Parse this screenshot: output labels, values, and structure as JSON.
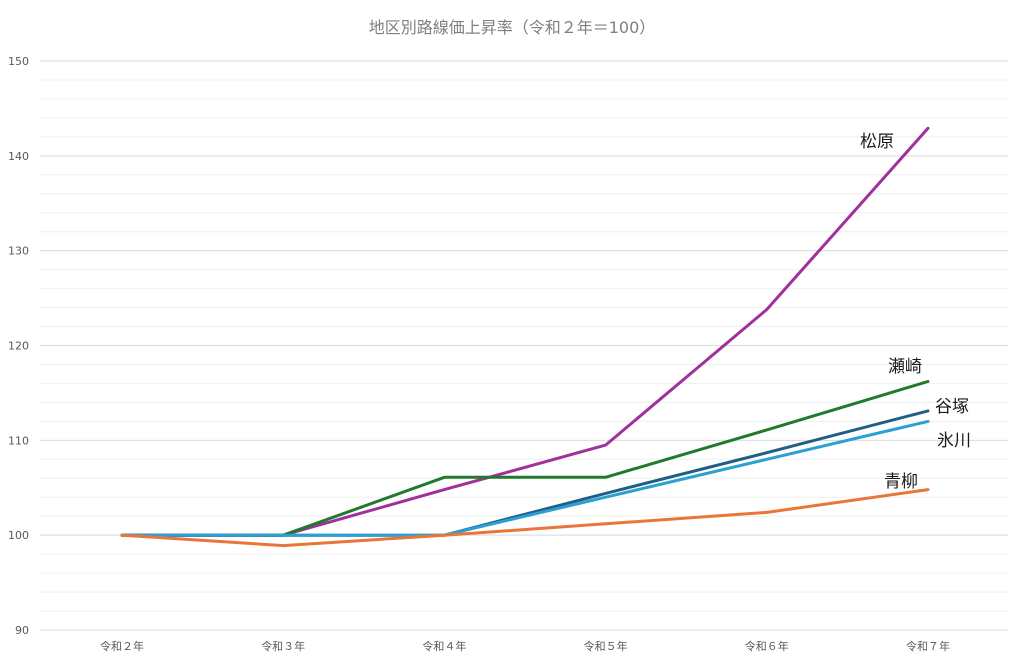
{
  "chart_data": {
    "type": "line",
    "title": "地区別路線価上昇率（令和２年＝100）",
    "xlabel": "",
    "ylabel": "",
    "categories": [
      "令和２年",
      "令和３年",
      "令和４年",
      "令和５年",
      "令和６年",
      "令和７年"
    ],
    "ylim": [
      90,
      150
    ],
    "yticks": [
      90,
      100,
      110,
      120,
      130,
      140,
      150
    ],
    "grid": true,
    "legend": "labels at line ends",
    "series": [
      {
        "name": "松原",
        "color": "#a0309a",
        "values": [
          100,
          100,
          104.8,
          109.5,
          123.8,
          142.9
        ]
      },
      {
        "name": "瀬崎",
        "color": "#217a2c",
        "values": [
          100,
          100,
          106.1,
          106.1,
          111.1,
          116.2
        ]
      },
      {
        "name": "谷塚",
        "color": "#1f5f85",
        "values": [
          100,
          100,
          100,
          104.4,
          108.7,
          113.1
        ]
      },
      {
        "name": "氷川",
        "color": "#2aa0d4",
        "values": [
          100,
          100,
          100,
          104.0,
          108.0,
          112.0
        ]
      },
      {
        "name": "青柳",
        "color": "#e8763a",
        "values": [
          100,
          98.9,
          100,
          101.2,
          102.4,
          104.8
        ]
      }
    ]
  }
}
